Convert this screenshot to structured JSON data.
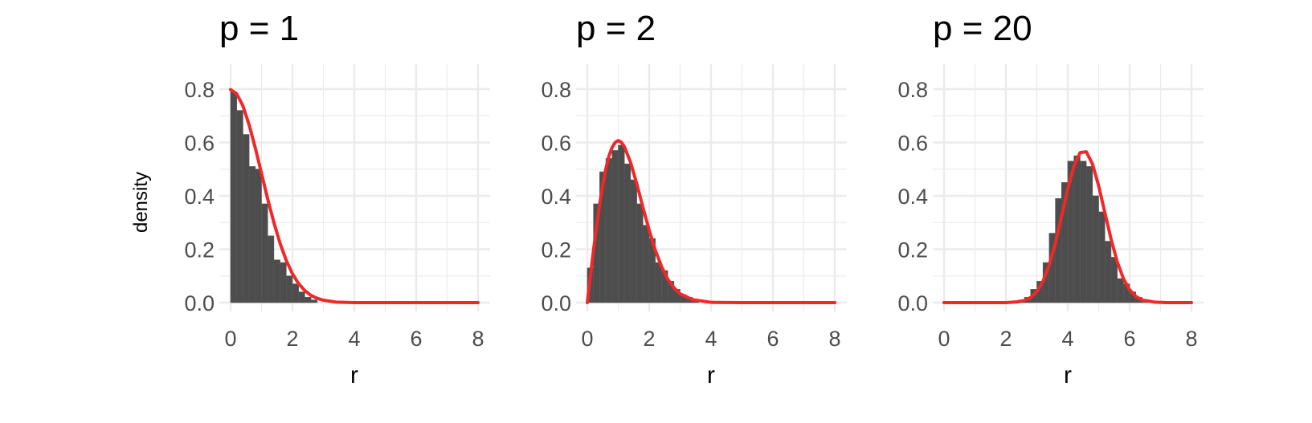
{
  "chart_data": {
    "type": "bar",
    "ylabel": "density",
    "xlabel": "r",
    "xlim": [
      0,
      8
    ],
    "ylim": [
      0,
      0.8
    ],
    "x_ticks": [
      0,
      2,
      4,
      6,
      8
    ],
    "y_ticks": [
      0.0,
      0.2,
      0.4,
      0.6,
      0.8
    ],
    "y_tick_labels": [
      "0.0",
      "0.2",
      "0.4",
      "0.6",
      "0.8"
    ],
    "grid": true,
    "legend": "none",
    "bar_color": "#4d4d4d",
    "curve_color": "#f02828",
    "bin_width": 0.2,
    "panels": [
      {
        "title": "p = 1",
        "xlabel": "r",
        "bins": [
          {
            "x": 0.1,
            "y": 0.79
          },
          {
            "x": 0.3,
            "y": 0.72
          },
          {
            "x": 0.5,
            "y": 0.63
          },
          {
            "x": 0.7,
            "y": 0.51
          },
          {
            "x": 0.9,
            "y": 0.5
          },
          {
            "x": 1.1,
            "y": 0.37
          },
          {
            "x": 1.3,
            "y": 0.25
          },
          {
            "x": 1.5,
            "y": 0.16
          },
          {
            "x": 1.7,
            "y": 0.15
          },
          {
            "x": 1.9,
            "y": 0.1
          },
          {
            "x": 2.1,
            "y": 0.07
          },
          {
            "x": 2.3,
            "y": 0.04
          },
          {
            "x": 2.5,
            "y": 0.02
          },
          {
            "x": 2.7,
            "y": 0.01
          }
        ],
        "curve": [
          {
            "x": 0.0,
            "y": 0.798
          },
          {
            "x": 0.2,
            "y": 0.782
          },
          {
            "x": 0.4,
            "y": 0.737
          },
          {
            "x": 0.6,
            "y": 0.666
          },
          {
            "x": 0.8,
            "y": 0.579
          },
          {
            "x": 1.0,
            "y": 0.484
          },
          {
            "x": 1.2,
            "y": 0.388
          },
          {
            "x": 1.4,
            "y": 0.3
          },
          {
            "x": 1.6,
            "y": 0.222
          },
          {
            "x": 1.8,
            "y": 0.158
          },
          {
            "x": 2.0,
            "y": 0.108
          },
          {
            "x": 2.2,
            "y": 0.071
          },
          {
            "x": 2.4,
            "y": 0.045
          },
          {
            "x": 2.6,
            "y": 0.027
          },
          {
            "x": 2.8,
            "y": 0.016
          },
          {
            "x": 3.0,
            "y": 0.009
          },
          {
            "x": 3.4,
            "y": 0.002
          },
          {
            "x": 4.0,
            "y": 0.0
          },
          {
            "x": 6.0,
            "y": 0.0
          },
          {
            "x": 8.0,
            "y": 0.0
          }
        ]
      },
      {
        "title": "p = 2",
        "xlabel": "r",
        "bins": [
          {
            "x": 0.1,
            "y": 0.13
          },
          {
            "x": 0.3,
            "y": 0.37
          },
          {
            "x": 0.5,
            "y": 0.49
          },
          {
            "x": 0.7,
            "y": 0.54
          },
          {
            "x": 0.9,
            "y": 0.57
          },
          {
            "x": 1.1,
            "y": 0.59
          },
          {
            "x": 1.3,
            "y": 0.52
          },
          {
            "x": 1.5,
            "y": 0.46
          },
          {
            "x": 1.7,
            "y": 0.37
          },
          {
            "x": 1.9,
            "y": 0.29
          },
          {
            "x": 2.1,
            "y": 0.24
          },
          {
            "x": 2.3,
            "y": 0.15
          },
          {
            "x": 2.5,
            "y": 0.12
          },
          {
            "x": 2.7,
            "y": 0.08
          },
          {
            "x": 2.9,
            "y": 0.05
          },
          {
            "x": 3.1,
            "y": 0.03
          },
          {
            "x": 3.3,
            "y": 0.02
          },
          {
            "x": 3.5,
            "y": 0.01
          }
        ],
        "curve": [
          {
            "x": 0.0,
            "y": 0.0
          },
          {
            "x": 0.1,
            "y": 0.099
          },
          {
            "x": 0.2,
            "y": 0.196
          },
          {
            "x": 0.3,
            "y": 0.286
          },
          {
            "x": 0.4,
            "y": 0.369
          },
          {
            "x": 0.5,
            "y": 0.441
          },
          {
            "x": 0.6,
            "y": 0.502
          },
          {
            "x": 0.7,
            "y": 0.549
          },
          {
            "x": 0.8,
            "y": 0.581
          },
          {
            "x": 0.9,
            "y": 0.6
          },
          {
            "x": 1.0,
            "y": 0.607
          },
          {
            "x": 1.1,
            "y": 0.601
          },
          {
            "x": 1.2,
            "y": 0.584
          },
          {
            "x": 1.4,
            "y": 0.525
          },
          {
            "x": 1.6,
            "y": 0.445
          },
          {
            "x": 1.8,
            "y": 0.356
          },
          {
            "x": 2.0,
            "y": 0.271
          },
          {
            "x": 2.2,
            "y": 0.196
          },
          {
            "x": 2.4,
            "y": 0.135
          },
          {
            "x": 2.6,
            "y": 0.088
          },
          {
            "x": 2.8,
            "y": 0.056
          },
          {
            "x": 3.0,
            "y": 0.033
          },
          {
            "x": 3.4,
            "y": 0.011
          },
          {
            "x": 4.0,
            "y": 0.001
          },
          {
            "x": 5.0,
            "y": 0.0
          },
          {
            "x": 8.0,
            "y": 0.0
          }
        ]
      },
      {
        "title": "p = 20",
        "xlabel": "r",
        "bins": [
          {
            "x": 2.3,
            "y": 0.005
          },
          {
            "x": 2.5,
            "y": 0.01
          },
          {
            "x": 2.7,
            "y": 0.02
          },
          {
            "x": 2.9,
            "y": 0.05
          },
          {
            "x": 3.1,
            "y": 0.08
          },
          {
            "x": 3.3,
            "y": 0.15
          },
          {
            "x": 3.5,
            "y": 0.26
          },
          {
            "x": 3.7,
            "y": 0.39
          },
          {
            "x": 3.9,
            "y": 0.45
          },
          {
            "x": 4.1,
            "y": 0.53
          },
          {
            "x": 4.3,
            "y": 0.55
          },
          {
            "x": 4.5,
            "y": 0.53
          },
          {
            "x": 4.7,
            "y": 0.51
          },
          {
            "x": 4.9,
            "y": 0.4
          },
          {
            "x": 5.1,
            "y": 0.34
          },
          {
            "x": 5.3,
            "y": 0.23
          },
          {
            "x": 5.5,
            "y": 0.17
          },
          {
            "x": 5.7,
            "y": 0.09
          },
          {
            "x": 5.9,
            "y": 0.07
          },
          {
            "x": 6.1,
            "y": 0.04
          },
          {
            "x": 6.3,
            "y": 0.02
          },
          {
            "x": 6.5,
            "y": 0.01
          }
        ],
        "curve": [
          {
            "x": 0.0,
            "y": 0.0
          },
          {
            "x": 2.0,
            "y": 0.0
          },
          {
            "x": 2.4,
            "y": 0.003
          },
          {
            "x": 2.6,
            "y": 0.008
          },
          {
            "x": 2.8,
            "y": 0.019
          },
          {
            "x": 3.0,
            "y": 0.041
          },
          {
            "x": 3.2,
            "y": 0.08
          },
          {
            "x": 3.4,
            "y": 0.14
          },
          {
            "x": 3.6,
            "y": 0.223
          },
          {
            "x": 3.8,
            "y": 0.323
          },
          {
            "x": 4.0,
            "y": 0.425
          },
          {
            "x": 4.2,
            "y": 0.512
          },
          {
            "x": 4.4,
            "y": 0.562
          },
          {
            "x": 4.6,
            "y": 0.565
          },
          {
            "x": 4.8,
            "y": 0.519
          },
          {
            "x": 5.0,
            "y": 0.437
          },
          {
            "x": 5.2,
            "y": 0.337
          },
          {
            "x": 5.4,
            "y": 0.238
          },
          {
            "x": 5.6,
            "y": 0.153
          },
          {
            "x": 5.8,
            "y": 0.09
          },
          {
            "x": 6.0,
            "y": 0.048
          },
          {
            "x": 6.2,
            "y": 0.023
          },
          {
            "x": 6.4,
            "y": 0.01
          },
          {
            "x": 6.8,
            "y": 0.002
          },
          {
            "x": 7.2,
            "y": 0.0
          },
          {
            "x": 8.0,
            "y": 0.0
          }
        ]
      }
    ]
  }
}
